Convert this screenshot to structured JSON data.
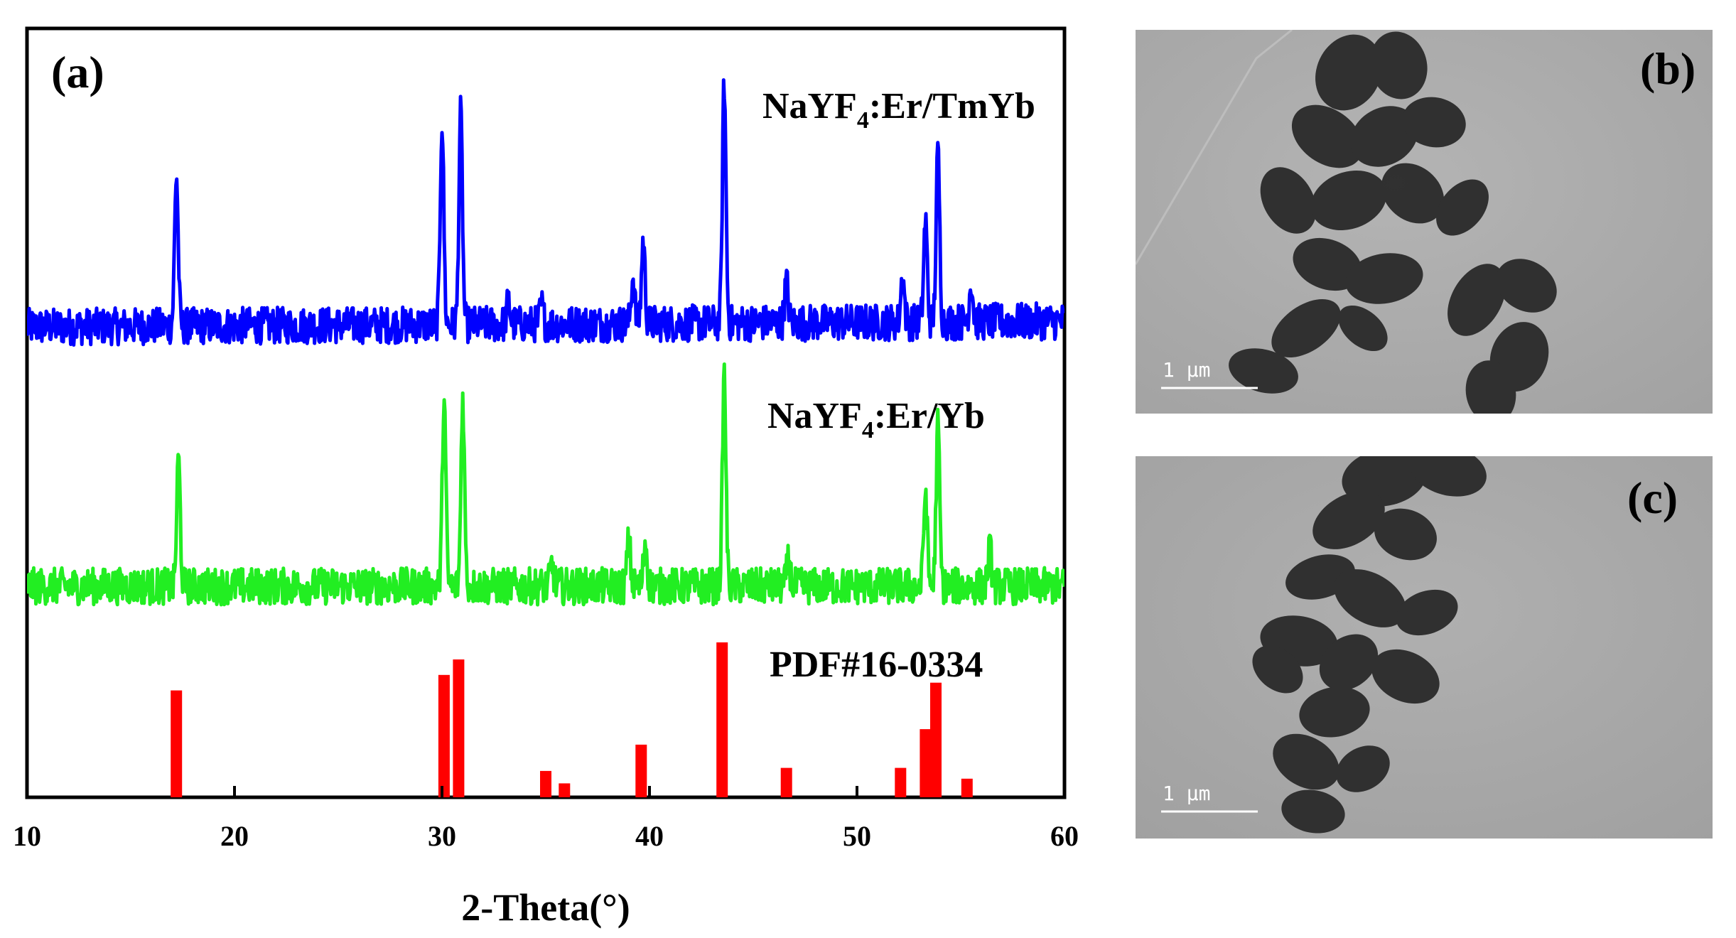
{
  "panels": {
    "a": "(a)",
    "b": "(b)",
    "c": "(c)"
  },
  "scale_bars": {
    "b": "1 μm",
    "c": "1 μm"
  },
  "chart_data": {
    "type": "line",
    "title": "",
    "xlabel": "2-Theta(°)",
    "ylabel": "",
    "xlim": [
      10,
      60
    ],
    "xticks": [
      10,
      20,
      30,
      40,
      50,
      60
    ],
    "grid": false,
    "series": [
      {
        "name": "NaYF",
        "name_subscript": "4",
        "name_suffix": ":Er/TmYb",
        "color": "#0000ff",
        "kind": "xrd",
        "peaks": [
          {
            "x": 17.2,
            "h": 0.82
          },
          {
            "x": 30.0,
            "h": 1.1
          },
          {
            "x": 30.9,
            "h": 1.14
          },
          {
            "x": 33.2,
            "h": 0.12
          },
          {
            "x": 34.8,
            "h": 0.1
          },
          {
            "x": 39.2,
            "h": 0.25
          },
          {
            "x": 39.7,
            "h": 0.45
          },
          {
            "x": 43.6,
            "h": 1.3
          },
          {
            "x": 46.6,
            "h": 0.22
          },
          {
            "x": 52.2,
            "h": 0.25
          },
          {
            "x": 53.3,
            "h": 0.55
          },
          {
            "x": 53.9,
            "h": 0.92
          },
          {
            "x": 55.5,
            "h": 0.22
          }
        ]
      },
      {
        "name": "NaYF",
        "name_subscript": "4",
        "name_suffix": ":Er/Yb",
        "color": "#22ee22",
        "kind": "xrd",
        "peaks": [
          {
            "x": 17.3,
            "h": 0.62
          },
          {
            "x": 30.1,
            "h": 0.92
          },
          {
            "x": 31.0,
            "h": 0.92
          },
          {
            "x": 35.3,
            "h": 0.1
          },
          {
            "x": 39.0,
            "h": 0.22
          },
          {
            "x": 39.8,
            "h": 0.22
          },
          {
            "x": 43.6,
            "h": 1.02
          },
          {
            "x": 46.7,
            "h": 0.12
          },
          {
            "x": 53.3,
            "h": 0.46
          },
          {
            "x": 53.9,
            "h": 0.78
          },
          {
            "x": 56.4,
            "h": 0.18
          }
        ]
      },
      {
        "name": "PDF#16-0334",
        "color": "#ff0000",
        "kind": "reference",
        "x": [
          17.2,
          30.1,
          30.8,
          35.0,
          35.9,
          39.6,
          43.5,
          46.6,
          52.1,
          53.3,
          53.8,
          55.3
        ],
        "values": [
          0.69,
          0.79,
          0.89,
          0.17,
          0.09,
          0.34,
          1.0,
          0.19,
          0.19,
          0.44,
          0.74,
          0.12
        ]
      }
    ]
  }
}
